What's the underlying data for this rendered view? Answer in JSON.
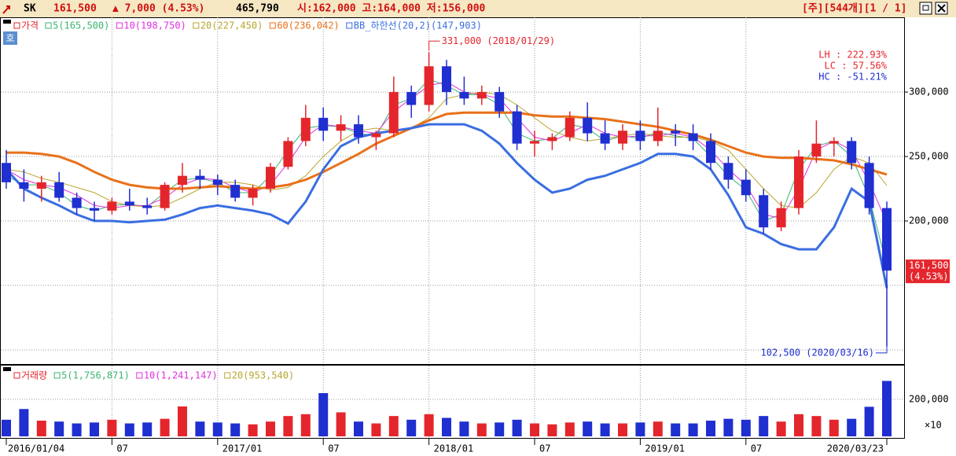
{
  "header": {
    "symbol": "SK",
    "price": "161,500",
    "change": "▲ 7,000 (4.53%)",
    "volume": "465,790",
    "ohl": "시:162,000 고:164,000 저:156,000",
    "info": "[주][544개][1 / 1]"
  },
  "chart_data": {
    "type": "candlestick",
    "categories": [
      "2016/01/04",
      null,
      null,
      null,
      null,
      null,
      "07",
      null,
      null,
      null,
      null,
      null,
      "2017/01",
      null,
      null,
      null,
      null,
      null,
      "07",
      null,
      null,
      null,
      null,
      null,
      "2018/01",
      null,
      null,
      null,
      null,
      null,
      "07",
      null,
      null,
      null,
      null,
      null,
      "2019/01",
      null,
      null,
      null,
      null,
      null,
      "07",
      null,
      null,
      null,
      null,
      null,
      null,
      null,
      "2020/03/23"
    ],
    "price_label": "가격",
    "open": [
      245000,
      230000,
      225000,
      230000,
      218000,
      210000,
      208000,
      215000,
      212000,
      210000,
      228000,
      235000,
      232000,
      228000,
      218000,
      225000,
      242000,
      262000,
      280000,
      270000,
      275000,
      265000,
      268000,
      300000,
      290000,
      320000,
      300000,
      295000,
      300000,
      285000,
      260000,
      262000,
      265000,
      280000,
      268000,
      260000,
      270000,
      262000,
      270000,
      268000,
      262000,
      245000,
      232000,
      220000,
      195000,
      210000,
      250000,
      260000,
      262000,
      245000,
      210000
    ],
    "high": [
      255000,
      240000,
      235000,
      238000,
      222000,
      215000,
      218000,
      225000,
      218000,
      230000,
      245000,
      240000,
      236000,
      232000,
      228000,
      245000,
      265000,
      290000,
      288000,
      282000,
      282000,
      270000,
      312000,
      305000,
      331000,
      325000,
      312000,
      305000,
      304000,
      290000,
      270000,
      268000,
      285000,
      292000,
      278000,
      275000,
      278000,
      288000,
      275000,
      275000,
      268000,
      250000,
      240000,
      225000,
      215000,
      255000,
      278000,
      265000,
      265000,
      250000,
      215000
    ],
    "low": [
      225000,
      215000,
      215000,
      215000,
      205000,
      200000,
      205000,
      208000,
      205000,
      208000,
      222000,
      225000,
      220000,
      215000,
      212000,
      222000,
      240000,
      258000,
      262000,
      262000,
      260000,
      255000,
      265000,
      280000,
      285000,
      290000,
      290000,
      290000,
      280000,
      255000,
      250000,
      255000,
      262000,
      262000,
      255000,
      255000,
      255000,
      258000,
      258000,
      255000,
      240000,
      225000,
      215000,
      190000,
      192000,
      205000,
      245000,
      250000,
      240000,
      205000,
      102500
    ],
    "close": [
      230000,
      225000,
      230000,
      218000,
      210000,
      208000,
      215000,
      212000,
      210000,
      228000,
      235000,
      232000,
      228000,
      218000,
      225000,
      242000,
      262000,
      280000,
      270000,
      275000,
      265000,
      268000,
      300000,
      290000,
      320000,
      300000,
      295000,
      300000,
      285000,
      260000,
      262000,
      265000,
      280000,
      268000,
      260000,
      270000,
      262000,
      270000,
      268000,
      262000,
      245000,
      232000,
      220000,
      195000,
      210000,
      250000,
      260000,
      262000,
      245000,
      210000,
      161500
    ],
    "up_color": "#e4262c",
    "down_color": "#1f2fd0",
    "series": [
      {
        "name": "5(165,500)",
        "color": "#3cb371",
        "values": [
          235000,
          228000,
          228000,
          222000,
          212000,
          208000,
          212000,
          213000,
          211000,
          222000,
          232000,
          233000,
          230000,
          222000,
          222000,
          235000,
          255000,
          272000,
          274000,
          273000,
          268000,
          266000,
          290000,
          295000,
          310000,
          305000,
          298000,
          298000,
          290000,
          268000,
          262000,
          264000,
          275000,
          272000,
          262000,
          266000,
          264000,
          269000,
          266000,
          264000,
          250000,
          235000,
          224000,
          200000,
          205000,
          240000,
          258000,
          262000,
          250000,
          218000,
          165500
        ]
      },
      {
        "name": "10(198,750)",
        "color": "#e030e0",
        "values": [
          240000,
          232000,
          228000,
          226000,
          220000,
          212000,
          210000,
          212000,
          212000,
          218000,
          228000,
          233000,
          232000,
          226000,
          222000,
          228000,
          245000,
          265000,
          275000,
          273000,
          270000,
          268000,
          285000,
          295000,
          305000,
          308000,
          300000,
          298000,
          295000,
          280000,
          265000,
          262000,
          268000,
          275000,
          268000,
          265000,
          266000,
          266000,
          268000,
          265000,
          255000,
          240000,
          228000,
          205000,
          202000,
          225000,
          255000,
          262000,
          255000,
          230000,
          198750
        ]
      },
      {
        "name": "20(227,450)",
        "color": "#b8a630",
        "values": [
          240000,
          238000,
          233000,
          230000,
          226000,
          222000,
          215000,
          212000,
          211000,
          212000,
          218000,
          225000,
          230000,
          230000,
          228000,
          224000,
          226000,
          235000,
          250000,
          262000,
          270000,
          272000,
          270000,
          272000,
          280000,
          295000,
          298000,
          300000,
          298000,
          290000,
          280000,
          270000,
          265000,
          262000,
          264000,
          266000,
          268000,
          266000,
          265000,
          265000,
          262000,
          255000,
          240000,
          225000,
          212000,
          210000,
          222000,
          240000,
          250000,
          245000,
          227450
        ]
      },
      {
        "name": "60(236,042)",
        "color": "#e8711a",
        "width": 3,
        "values": [
          253000,
          253000,
          252000,
          250000,
          245000,
          238000,
          232000,
          228000,
          226000,
          225000,
          225000,
          226000,
          227000,
          226000,
          225000,
          226000,
          228000,
          232000,
          238000,
          245000,
          252000,
          260000,
          266000,
          272000,
          278000,
          283000,
          284000,
          284000,
          284000,
          284000,
          282000,
          281000,
          281000,
          280000,
          279000,
          277000,
          275000,
          273000,
          270000,
          267000,
          263000,
          258000,
          253000,
          250000,
          249000,
          249000,
          248000,
          247000,
          244000,
          240000,
          236042
        ]
      },
      {
        "name": "BB_하한선(20,2)(147,903)",
        "color": "#3a6ee0",
        "width": 3,
        "values": [
          240000,
          225000,
          218000,
          212000,
          205000,
          200000,
          200000,
          199000,
          200000,
          201000,
          205000,
          210000,
          212000,
          210000,
          208000,
          205000,
          198000,
          215000,
          240000,
          258000,
          265000,
          268000,
          270000,
          272000,
          275000,
          275000,
          275000,
          270000,
          260000,
          245000,
          232000,
          222000,
          225000,
          232000,
          235000,
          240000,
          245000,
          252000,
          252000,
          250000,
          240000,
          220000,
          195000,
          190000,
          182000,
          178000,
          178000,
          195000,
          225000,
          215000,
          147903
        ]
      }
    ],
    "ylim": [
      89000,
      358000
    ],
    "yticks": [
      {
        "value": 300000,
        "label": "300,000"
      },
      {
        "value": 250000,
        "label": "250,000"
      },
      {
        "value": 200000,
        "label": "200,000"
      }
    ],
    "minor_gridlines": [
      150000,
      100000
    ],
    "grid": true,
    "last_label": "161,500",
    "last_change": "(4.53%)",
    "annotations": [
      {
        "text": "331,000 (2018/01/29)",
        "index": 24,
        "value": 331000
      },
      {
        "text": "102,500 (2020/03/16)",
        "index": 50,
        "value": 102500
      }
    ],
    "stats": [
      {
        "text": "LH : 222.93%",
        "color": "#e4262c"
      },
      {
        "text": "LC :  57.56%",
        "color": "#e4262c"
      },
      {
        "text": "HC : -51.21%",
        "color": "#1f2fd0"
      }
    ],
    "volume": {
      "label": "거래량",
      "legend": [
        {
          "name": "5(1,756,871)",
          "color": "#3cb371"
        },
        {
          "name": "10(1,241,147)",
          "color": "#e030e0"
        },
        {
          "name": "20(953,540)",
          "color": "#b8a630"
        }
      ],
      "values": [
        90000,
        148000,
        85000,
        80000,
        70000,
        75000,
        90000,
        70000,
        75000,
        95000,
        162000,
        80000,
        75000,
        70000,
        65000,
        80000,
        110000,
        120000,
        234000,
        130000,
        80000,
        70000,
        110000,
        90000,
        120000,
        100000,
        80000,
        70000,
        75000,
        90000,
        70000,
        65000,
        75000,
        80000,
        70000,
        70000,
        75000,
        80000,
        70000,
        70000,
        85000,
        95000,
        90000,
        110000,
        80000,
        120000,
        110000,
        90000,
        95000,
        160000,
        300000
      ],
      "ylim": [
        0,
        383000
      ],
      "yticks": [
        {
          "value": 200000,
          "label": "200,000"
        }
      ],
      "unit": "×10"
    }
  }
}
